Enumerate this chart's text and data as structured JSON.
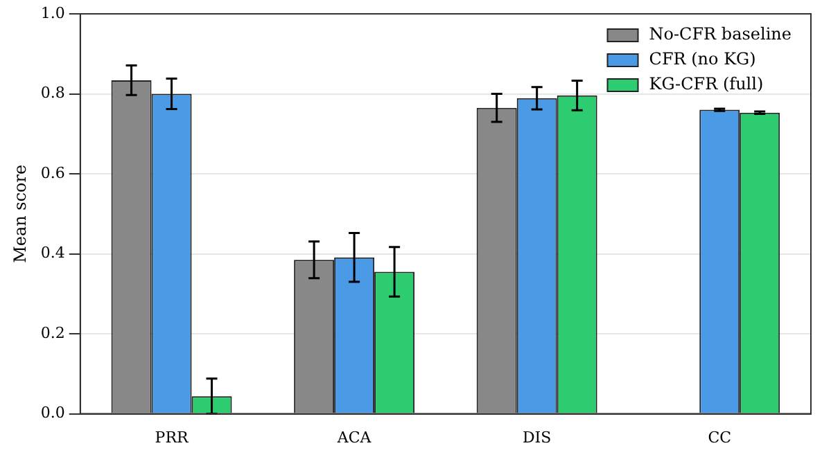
{
  "chart_data": {
    "type": "bar",
    "ylabel": "Mean score",
    "categories": [
      "PRR",
      "ACA",
      "DIS",
      "CC"
    ],
    "series": [
      {
        "name": "No-CFR baseline",
        "color": "#888888",
        "values": [
          0.834,
          0.385,
          0.765,
          null
        ],
        "errors": [
          0.037,
          0.046,
          0.035,
          null
        ]
      },
      {
        "name": "CFR (no KG)",
        "color": "#4a9ae6",
        "values": [
          0.8,
          0.391,
          0.789,
          0.76
        ],
        "errors": [
          0.038,
          0.061,
          0.028,
          0.003
        ]
      },
      {
        "name": "KG-CFR (full)",
        "color": "#2ecc71",
        "values": [
          0.044,
          0.355,
          0.796,
          0.753
        ],
        "errors": [
          0.044,
          0.062,
          0.037,
          0.003
        ]
      }
    ],
    "ylim": [
      0,
      1
    ],
    "yticks": [
      {
        "value": 0,
        "label": "0.0"
      },
      {
        "value": 0.2,
        "label": "0.2"
      },
      {
        "value": 0.4,
        "label": "0.4"
      },
      {
        "value": 0.6,
        "label": "0.6"
      },
      {
        "value": 0.8,
        "label": "0.8"
      },
      {
        "value": 1,
        "label": "1.0"
      }
    ],
    "grid": "y",
    "legend": "top right"
  }
}
